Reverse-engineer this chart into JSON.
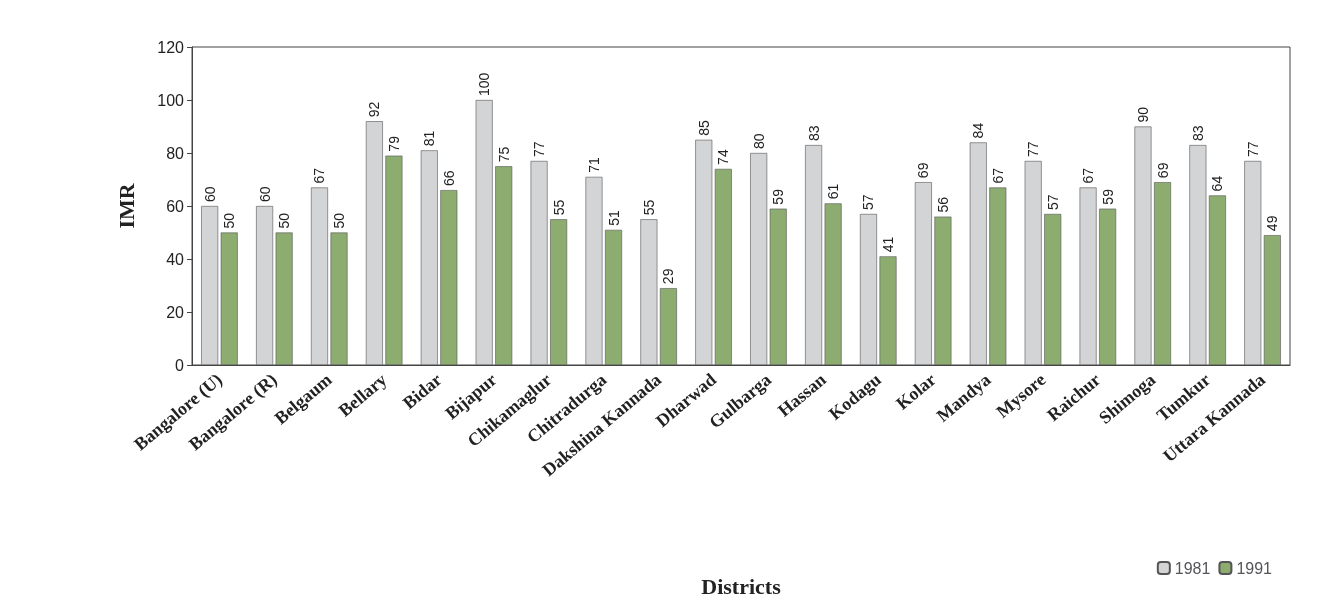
{
  "chart_data": {
    "type": "bar",
    "xlabel": "Districts",
    "ylabel": "IMR",
    "categories": [
      "Bangalore (U)",
      "Bangalore (R)",
      "Belgaum",
      "Bellary",
      "Bidar",
      "Bijapur",
      "Chikamaglur",
      "Chitradurga",
      "Dakshina Kannada",
      "Dharwad",
      "Gulbarga",
      "Hassan",
      "Kodagu",
      "Kolar",
      "Mandya",
      "Mysore",
      "Raichur",
      "Shimoga",
      "Tumkur",
      "Uttara Kannada"
    ],
    "series": [
      {
        "name": "1981",
        "color": "#d3d4d6",
        "values": [
          60,
          60,
          67,
          92,
          81,
          100,
          77,
          71,
          55,
          85,
          80,
          83,
          57,
          69,
          84,
          77,
          67,
          90,
          83,
          77
        ]
      },
      {
        "name": "1991",
        "color": "#8cac70",
        "values": [
          50,
          50,
          50,
          79,
          66,
          75,
          55,
          51,
          29,
          74,
          59,
          61,
          41,
          56,
          67,
          57,
          59,
          69,
          64,
          49
        ]
      }
    ],
    "ylim": [
      0,
      120
    ],
    "yticks": [
      0,
      20,
      40,
      60,
      80,
      100,
      120
    ],
    "grid": false,
    "data_labels": true,
    "legend": "bottom right"
  }
}
